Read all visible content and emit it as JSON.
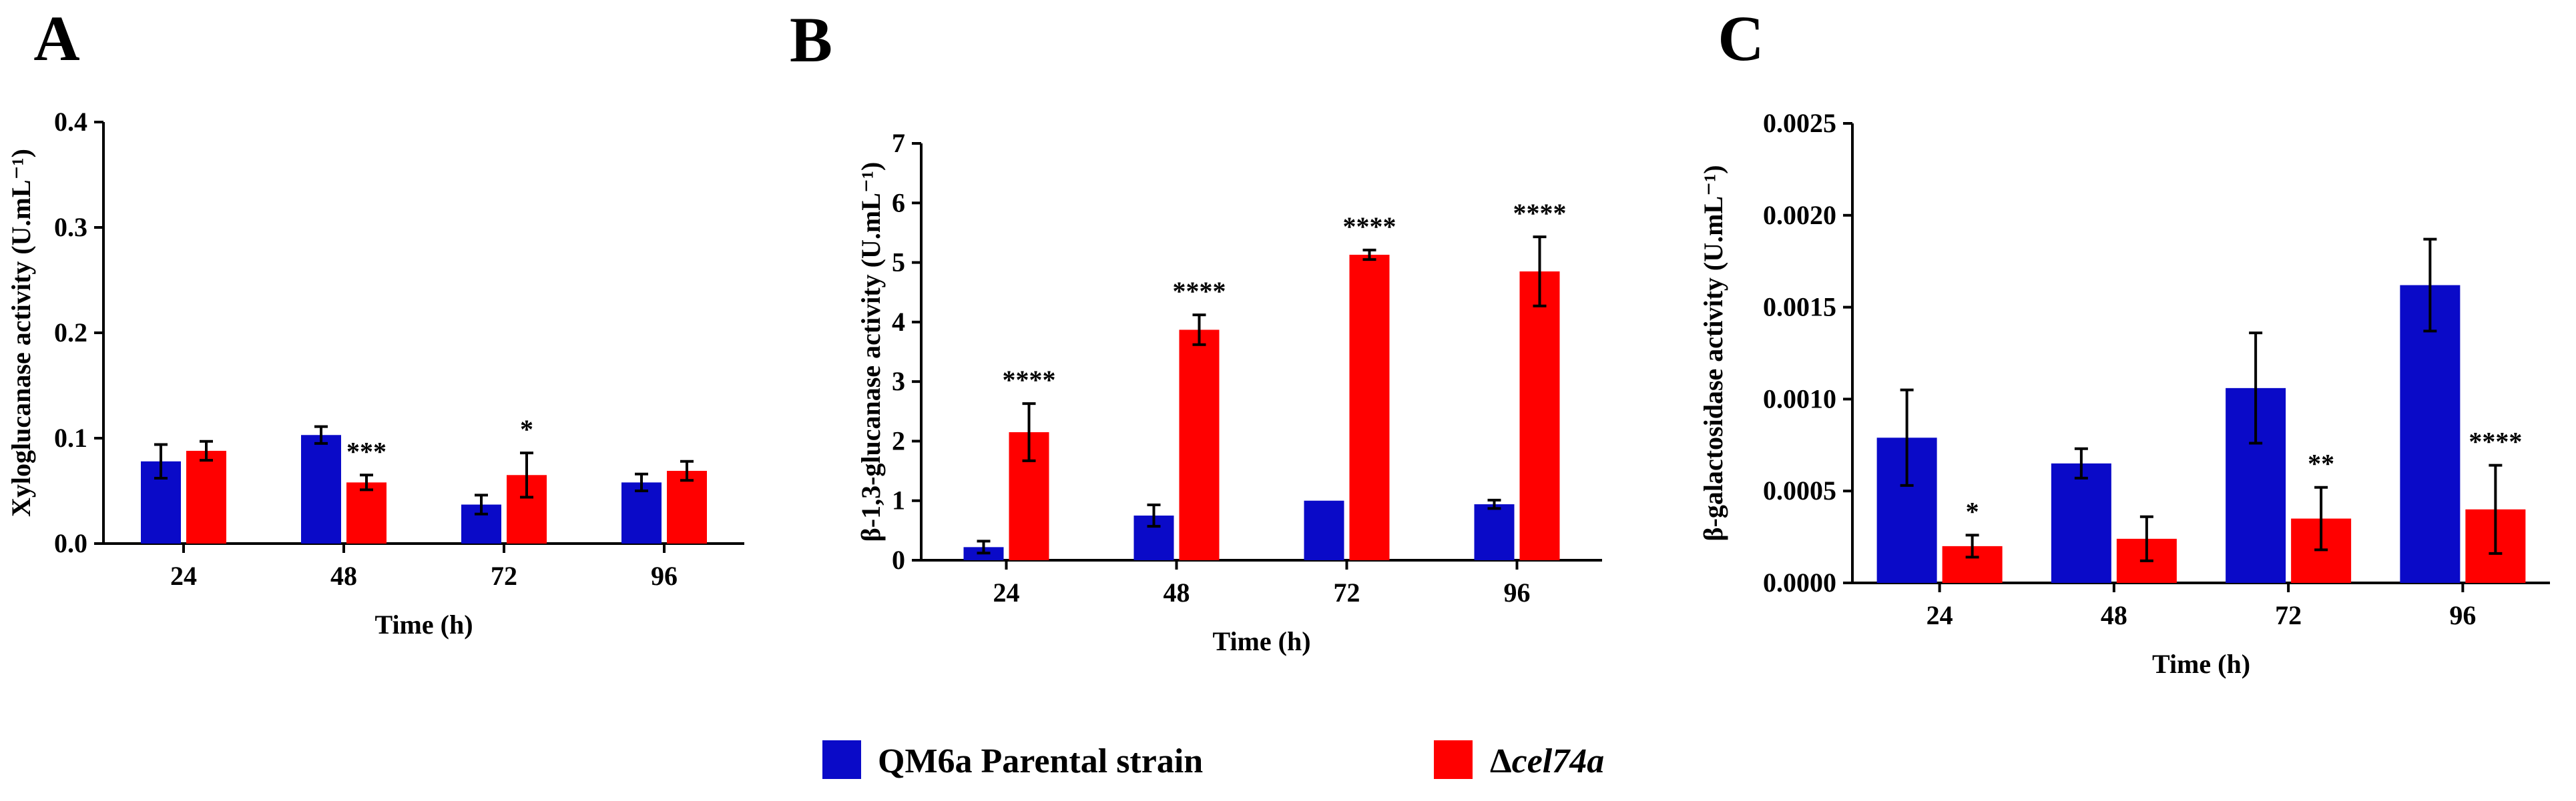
{
  "colors": {
    "parental": "#0a0ac8",
    "mutant": "#ff0000",
    "axis": "#000000"
  },
  "legend": {
    "items": [
      {
        "key": "parental",
        "label": "QM6a Parental strain"
      },
      {
        "key": "mutant",
        "prefix": "Δ",
        "label": "cel74a"
      }
    ]
  },
  "chart_data": [
    {
      "type": "bar",
      "panel": "A",
      "title": "",
      "xlabel": "Time (h)",
      "ylabel": "Xyloglucanase activity (U.mL⁻¹)",
      "categories": [
        "24",
        "48",
        "72",
        "96"
      ],
      "ylim": [
        0,
        0.4
      ],
      "yticks": [
        "0.0",
        "0.1",
        "0.2",
        "0.3",
        "0.4"
      ],
      "series": [
        {
          "name": "QM6a Parental strain",
          "key": "parental",
          "values": [
            0.078,
            0.103,
            0.037,
            0.058
          ],
          "errors": [
            0.016,
            0.008,
            0.009,
            0.008
          ]
        },
        {
          "name": "Δcel74a",
          "key": "mutant",
          "values": [
            0.088,
            0.058,
            0.065,
            0.069
          ],
          "errors": [
            0.009,
            0.007,
            0.021,
            0.009
          ]
        }
      ],
      "significance": [
        "",
        "***",
        "*",
        ""
      ]
    },
    {
      "type": "bar",
      "panel": "B",
      "title": "",
      "xlabel": "Time (h)",
      "ylabel": "β-1,3-glucanase activity (U.mL⁻¹)",
      "categories": [
        "24",
        "48",
        "72",
        "96"
      ],
      "ylim": [
        0,
        7
      ],
      "yticks": [
        "0",
        "1",
        "2",
        "3",
        "4",
        "5",
        "6",
        "7"
      ],
      "series": [
        {
          "name": "QM6a Parental strain",
          "key": "parental",
          "values": [
            0.22,
            0.75,
            1.0,
            0.94
          ],
          "errors": [
            0.1,
            0.18,
            0,
            0.07
          ]
        },
        {
          "name": "Δcel74a",
          "key": "mutant",
          "values": [
            2.15,
            3.87,
            5.13,
            4.85
          ],
          "errors": [
            0.48,
            0.25,
            0.08,
            0.58
          ]
        }
      ],
      "significance": [
        "****",
        "****",
        "****",
        "****"
      ]
    },
    {
      "type": "bar",
      "panel": "C",
      "title": "",
      "xlabel": "Time (h)",
      "ylabel": "β-galactosidase  activity (U.mL⁻¹)",
      "categories": [
        "24",
        "48",
        "72",
        "96"
      ],
      "ylim": [
        0,
        0.0025
      ],
      "yticks": [
        "0.0000",
        "0.0005",
        "0.0010",
        "0.0015",
        "0.0020",
        "0.0025"
      ],
      "series": [
        {
          "name": "QM6a Parental strain",
          "key": "parental",
          "values": [
            0.00079,
            0.00065,
            0.00106,
            0.00162
          ],
          "errors": [
            0.00026,
            8e-05,
            0.0003,
            0.00025
          ]
        },
        {
          "name": "Δcel74a",
          "key": "mutant",
          "values": [
            0.0002,
            0.00024,
            0.00035,
            0.0004
          ],
          "errors": [
            6e-05,
            0.00012,
            0.00017,
            0.00024
          ]
        }
      ],
      "significance": [
        "*",
        "",
        "**",
        "****"
      ]
    }
  ]
}
